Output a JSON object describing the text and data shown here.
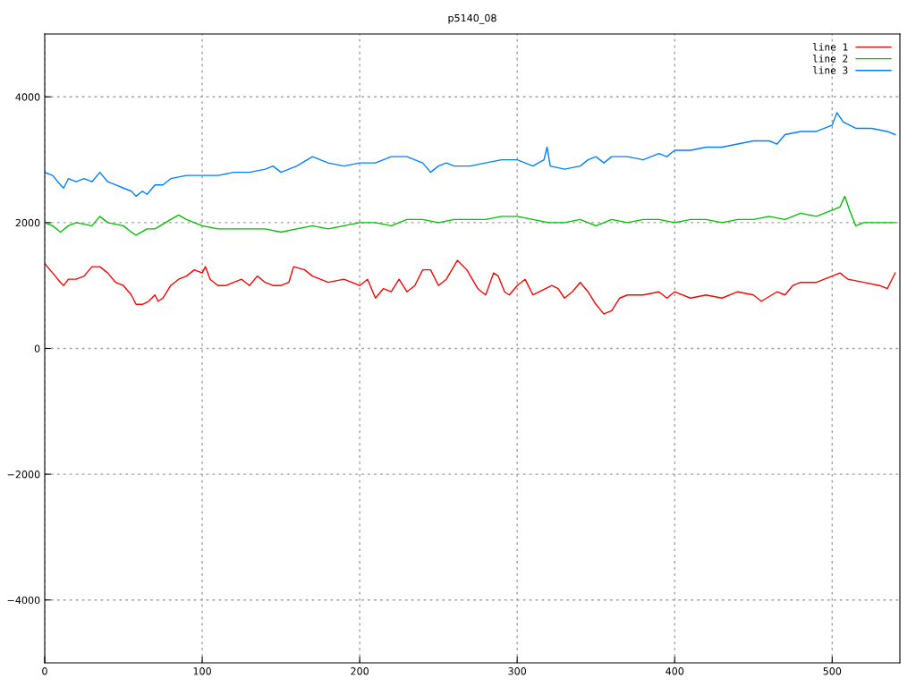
{
  "chart_data": {
    "type": "line",
    "title": "p5140_08",
    "xlim": [
      0,
      543
    ],
    "ylim": [
      -5000,
      5000
    ],
    "xticks": [
      0,
      100,
      200,
      300,
      400,
      500
    ],
    "yticks": [
      {
        "value": -4000,
        "label": "−4000"
      },
      {
        "value": -2000,
        "label": "−2000"
      },
      0,
      2000,
      4000
    ],
    "grid": true,
    "legend": "top right",
    "marker": "none",
    "line_style": "solid",
    "series": [
      {
        "name": "line 1",
        "color": "#ff0000",
        "x": [
          0,
          5,
          10,
          12,
          15,
          20,
          25,
          30,
          35,
          40,
          45,
          50,
          55,
          58,
          62,
          66,
          70,
          72,
          75,
          80,
          85,
          90,
          95,
          100,
          102,
          105,
          110,
          115,
          120,
          125,
          130,
          135,
          140,
          145,
          150,
          155,
          158,
          165,
          170,
          175,
          180,
          190,
          200,
          205,
          210,
          215,
          220,
          225,
          230,
          235,
          240,
          245,
          250,
          255,
          262,
          268,
          275,
          280,
          285,
          288,
          292,
          295,
          300,
          305,
          310,
          318,
          322,
          326,
          330,
          335,
          340,
          345,
          350,
          355,
          360,
          365,
          370,
          380,
          390,
          395,
          400,
          410,
          420,
          430,
          440,
          450,
          455,
          465,
          470,
          475,
          480,
          490,
          495,
          500,
          505,
          510,
          520,
          530,
          535,
          540
        ],
        "values": [
          1350,
          1200,
          1050,
          1000,
          1100,
          1100,
          1150,
          1300,
          1300,
          1200,
          1050,
          1000,
          850,
          700,
          700,
          750,
          850,
          750,
          800,
          1000,
          1100,
          1150,
          1250,
          1200,
          1300,
          1100,
          1000,
          1000,
          1050,
          1100,
          1000,
          1150,
          1050,
          1000,
          1000,
          1050,
          1300,
          1250,
          1150,
          1100,
          1050,
          1100,
          1000,
          1100,
          800,
          950,
          900,
          1100,
          900,
          1000,
          1250,
          1250,
          1000,
          1100,
          1400,
          1250,
          950,
          850,
          1200,
          1150,
          900,
          850,
          1000,
          1100,
          850,
          950,
          1000,
          950,
          800,
          900,
          1050,
          900,
          700,
          550,
          600,
          800,
          850,
          850,
          900,
          800,
          900,
          800,
          850,
          800,
          900,
          850,
          750,
          900,
          850,
          1000,
          1050,
          1050,
          1100,
          1150,
          1200,
          1100,
          1050,
          1000,
          950,
          1200
        ]
      },
      {
        "name": "line 2",
        "color": "#00c000",
        "x": [
          0,
          5,
          10,
          15,
          20,
          30,
          35,
          40,
          50,
          55,
          58,
          65,
          70,
          80,
          85,
          90,
          100,
          110,
          120,
          130,
          140,
          150,
          160,
          170,
          180,
          190,
          200,
          210,
          220,
          230,
          240,
          250,
          260,
          270,
          280,
          290,
          300,
          310,
          320,
          330,
          340,
          350,
          360,
          370,
          380,
          390,
          400,
          410,
          420,
          430,
          440,
          450,
          460,
          470,
          480,
          490,
          495,
          500,
          505,
          508,
          511,
          515,
          520,
          530,
          540
        ],
        "values": [
          2000,
          1950,
          1850,
          1950,
          2000,
          1950,
          2100,
          2000,
          1950,
          1850,
          1800,
          1900,
          1900,
          2050,
          2120,
          2050,
          1950,
          1900,
          1900,
          1900,
          1900,
          1850,
          1900,
          1950,
          1900,
          1950,
          2000,
          2000,
          1950,
          2050,
          2050,
          2000,
          2050,
          2050,
          2050,
          2100,
          2100,
          2050,
          2000,
          2000,
          2050,
          1950,
          2050,
          2000,
          2050,
          2050,
          2000,
          2050,
          2050,
          2000,
          2050,
          2050,
          2100,
          2050,
          2150,
          2100,
          2150,
          2200,
          2250,
          2420,
          2200,
          1950,
          2000,
          2000,
          2000
        ]
      },
      {
        "name": "line 3",
        "color": "#0080ff",
        "x": [
          0,
          5,
          10,
          12,
          15,
          20,
          25,
          30,
          35,
          40,
          45,
          50,
          55,
          58,
          62,
          65,
          70,
          75,
          80,
          90,
          100,
          110,
          120,
          130,
          140,
          145,
          150,
          160,
          170,
          175,
          180,
          190,
          200,
          210,
          220,
          230,
          240,
          245,
          250,
          255,
          260,
          270,
          280,
          290,
          300,
          305,
          310,
          317,
          319,
          321,
          330,
          340,
          345,
          350,
          355,
          360,
          370,
          380,
          390,
          395,
          400,
          410,
          420,
          430,
          440,
          450,
          460,
          465,
          470,
          480,
          490,
          500,
          503,
          507,
          515,
          525,
          535,
          540
        ],
        "values": [
          2800,
          2750,
          2600,
          2550,
          2700,
          2650,
          2700,
          2650,
          2800,
          2650,
          2600,
          2550,
          2500,
          2420,
          2500,
          2450,
          2600,
          2600,
          2700,
          2750,
          2750,
          2750,
          2800,
          2800,
          2850,
          2900,
          2800,
          2900,
          3050,
          3000,
          2950,
          2900,
          2950,
          2950,
          3050,
          3050,
          2950,
          2800,
          2900,
          2950,
          2900,
          2900,
          2950,
          3000,
          3000,
          2950,
          2900,
          3000,
          3200,
          2900,
          2850,
          2900,
          3000,
          3050,
          2950,
          3050,
          3050,
          3000,
          3100,
          3050,
          3150,
          3150,
          3200,
          3200,
          3250,
          3300,
          3300,
          3250,
          3400,
          3450,
          3450,
          3550,
          3750,
          3600,
          3500,
          3500,
          3450,
          3400
        ]
      }
    ]
  }
}
